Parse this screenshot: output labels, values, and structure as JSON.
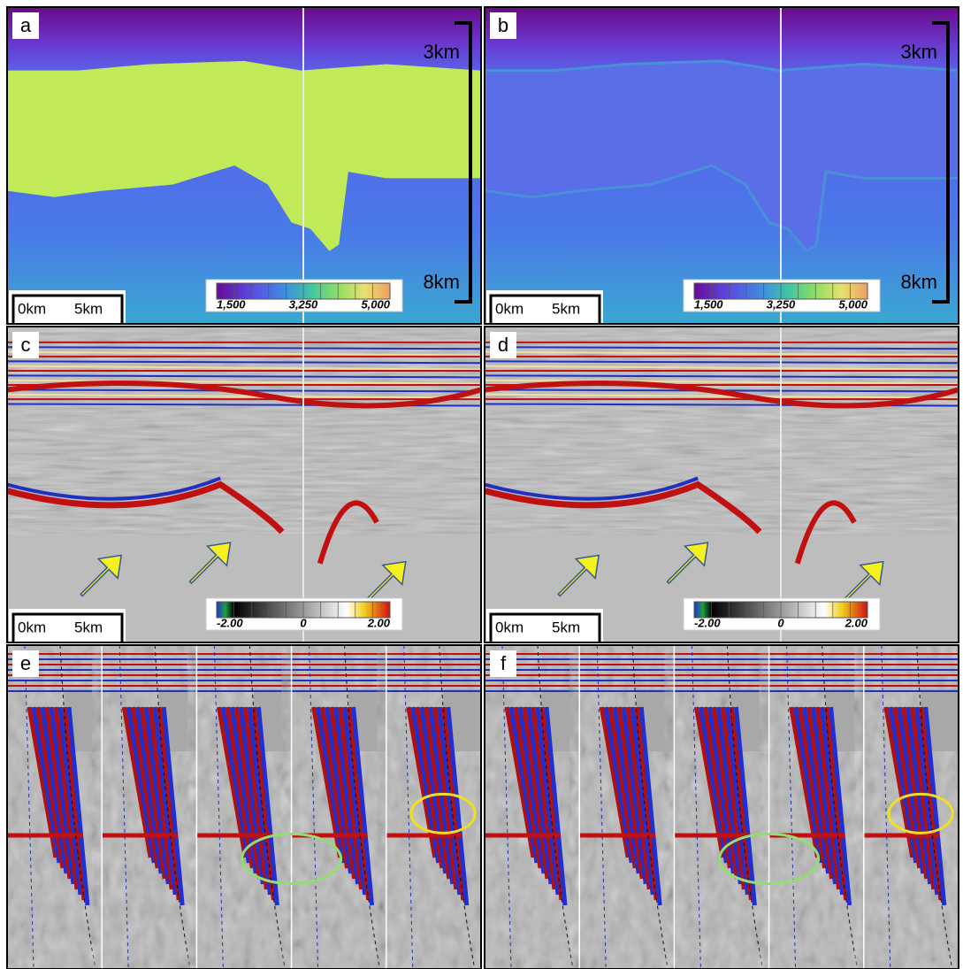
{
  "panels": [
    {
      "label": "a",
      "scale_bar": {
        "start": "0km",
        "end": "5km"
      },
      "depth": {
        "top": "3km",
        "bottom": "8km"
      },
      "colorbar": [
        "1,500",
        "3,250",
        "5,000"
      ]
    },
    {
      "label": "b",
      "scale_bar": {
        "start": "0km",
        "end": "5km"
      },
      "depth": {
        "top": "3km",
        "bottom": "8km"
      },
      "colorbar": [
        "1,500",
        "3,250",
        "5,000"
      ]
    },
    {
      "label": "c",
      "scale_bar": {
        "start": "0km",
        "end": "5km"
      },
      "colorbar": [
        "-2.00",
        "0",
        "2.00"
      ]
    },
    {
      "label": "d",
      "scale_bar": {
        "start": "0km",
        "end": "5km"
      },
      "colorbar": [
        "-2.00",
        "0",
        "2.00"
      ]
    },
    {
      "label": "e"
    },
    {
      "label": "f"
    }
  ]
}
